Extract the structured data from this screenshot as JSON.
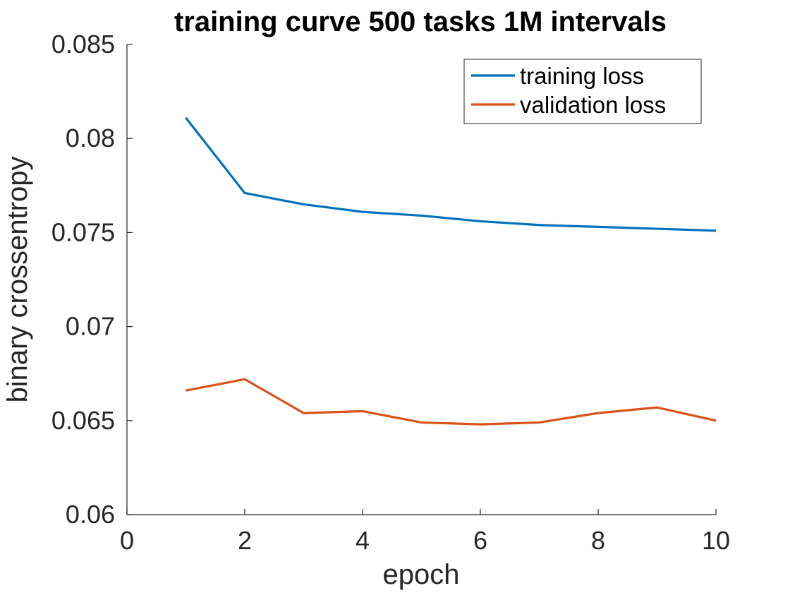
{
  "chart_data": {
    "type": "line",
    "title": "training curve 500 tasks 1M intervals",
    "xlabel": "epoch",
    "ylabel": "binary crossentropy",
    "xlim": [
      0,
      10
    ],
    "ylim": [
      0.06,
      0.085
    ],
    "xticks": [
      0,
      2,
      4,
      6,
      8,
      10
    ],
    "xtick_labels": [
      "0",
      "2",
      "4",
      "6",
      "8",
      "10"
    ],
    "yticks": [
      0.06,
      0.065,
      0.07,
      0.075,
      0.08,
      0.085
    ],
    "ytick_labels": [
      "0.06",
      "0.065",
      "0.07",
      "0.075",
      "0.08",
      "0.085"
    ],
    "grid": false,
    "legend_position": "top-right",
    "x": [
      1,
      2,
      3,
      4,
      5,
      6,
      7,
      8,
      9,
      10
    ],
    "series": [
      {
        "name": "training loss",
        "color": "#0072bd",
        "values": [
          0.0811,
          0.0771,
          0.0765,
          0.0761,
          0.0759,
          0.0756,
          0.0754,
          0.0753,
          0.0752,
          0.0751
        ]
      },
      {
        "name": "validation loss",
        "color": "#d95319",
        "values": [
          0.0666,
          0.0672,
          0.0654,
          0.0655,
          0.0649,
          0.0648,
          0.0649,
          0.0654,
          0.0657,
          0.065
        ]
      }
    ]
  }
}
